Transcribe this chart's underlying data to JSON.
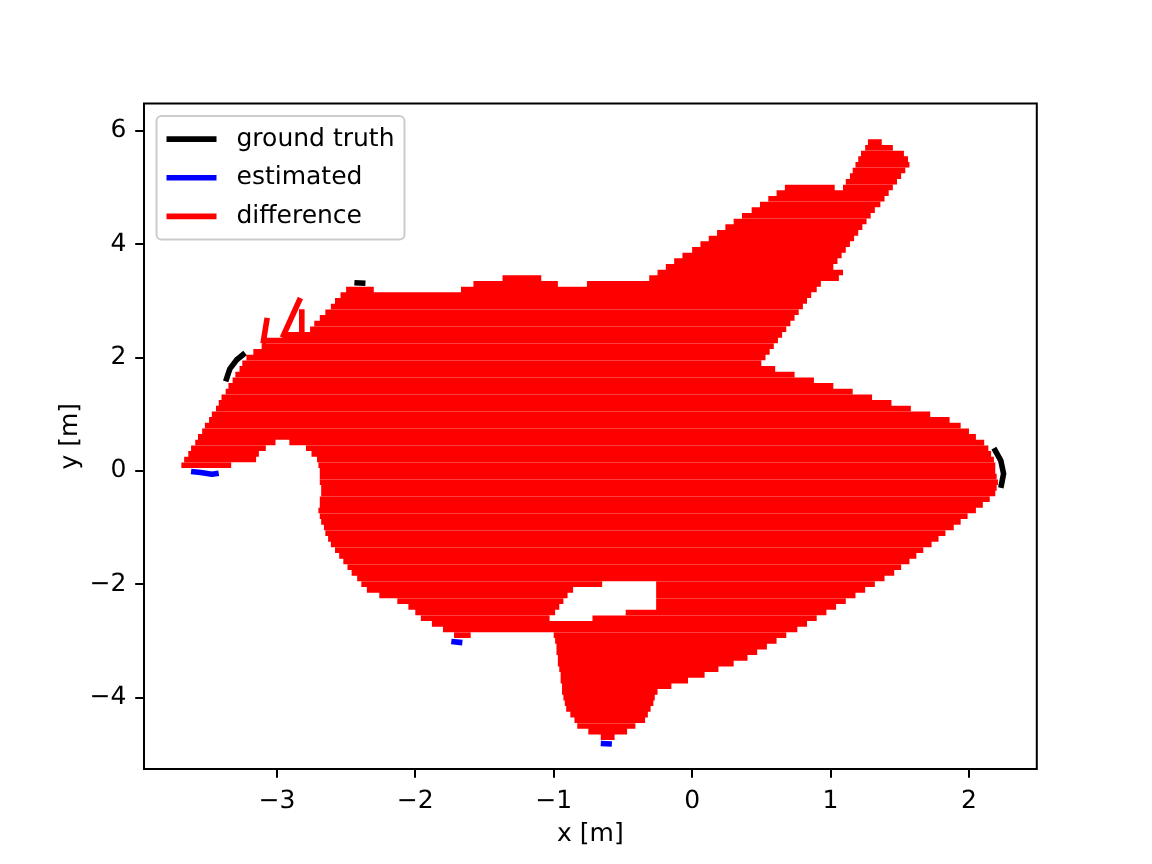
{
  "chart_data": {
    "type": "line",
    "xlabel": "x [m]",
    "ylabel": "y [m]",
    "xlim": [
      -3.96,
      2.49
    ],
    "ylim": [
      -5.26,
      6.48
    ],
    "xticks": [
      -3,
      -2,
      -1,
      0,
      1,
      2
    ],
    "yticks": [
      -4,
      -2,
      0,
      2,
      4,
      6
    ],
    "legend": "top left",
    "line_style": "solid",
    "series": [
      {
        "name": "ground truth",
        "color": "#000000",
        "x": [
          -3.37,
          -3.34,
          -3.29,
          -3.23,
          null,
          -2.44,
          -2.36,
          null,
          2.18,
          2.23,
          2.25,
          2.23
        ],
        "values": [
          1.58,
          1.8,
          1.96,
          2.08,
          null,
          3.32,
          3.31,
          null,
          0.4,
          0.18,
          -0.05,
          -0.3
        ]
      },
      {
        "name": "estimated",
        "color": "#0000ff",
        "x": [
          -3.62,
          -3.55,
          -3.47,
          -3.42,
          null,
          -1.74,
          -1.66,
          null,
          -0.66,
          -0.58
        ],
        "values": [
          -0.01,
          -0.03,
          -0.06,
          -0.04,
          null,
          -3.01,
          -3.03,
          null,
          -4.81,
          -4.82
        ]
      },
      {
        "name": "difference",
        "color": "#ff0000",
        "x": [
          -0.66,
          -0.56,
          null,
          -0.75,
          -0.47,
          null,
          -0.83,
          -0.41,
          null,
          -0.85,
          -0.34,
          null,
          -0.88,
          -0.32,
          null,
          -0.91,
          -0.3,
          null,
          -0.92,
          -0.28,
          null,
          -0.93,
          -0.27,
          null,
          -0.94,
          -0.25,
          null,
          -0.94,
          -0.15,
          null,
          -0.95,
          -0.03,
          null,
          -0.95,
          0.09,
          null,
          -0.96,
          0.19,
          null,
          -0.97,
          0.3,
          null,
          -0.97,
          0.4,
          null,
          -0.98,
          0.47,
          null,
          -0.98,
          0.54,
          null,
          -0.99,
          0.61,
          null,
          -1.72,
          -1.6,
          null,
          -1,
          0.68,
          null,
          -1.8,
          0.76,
          null,
          -1.88,
          0.83,
          null,
          -1.96,
          -1.03,
          null,
          -0.72,
          0.9,
          null,
          -2,
          -0.99,
          null,
          -0.48,
          0.97,
          null,
          -2.05,
          -0.96,
          null,
          -0.26,
          1.04,
          null,
          -2.13,
          -0.93,
          null,
          -0.26,
          1.11,
          null,
          -2.26,
          -0.9,
          null,
          -0.26,
          1.18,
          null,
          -2.35,
          -0.86,
          null,
          -0.26,
          1.25,
          null,
          -2.39,
          -0.65,
          null,
          -0.26,
          1.32,
          null,
          -2.42,
          1.39,
          null,
          -2.46,
          1.46,
          null,
          -2.49,
          1.51,
          null,
          -2.52,
          1.57,
          null,
          -2.55,
          1.62,
          null,
          -2.58,
          1.67,
          null,
          -2.61,
          1.73,
          null,
          -2.63,
          1.78,
          null,
          -2.65,
          1.83,
          null,
          -2.66,
          1.89,
          null,
          -2.68,
          1.94,
          null,
          -2.69,
          1.99,
          null,
          -2.7,
          2.05,
          null,
          -2.69,
          2.1,
          null,
          -2.69,
          2.15,
          null,
          -2.68,
          2.19,
          null,
          -2.68,
          2.2,
          null,
          -2.69,
          2.21,
          null,
          -2.69,
          2.2,
          null,
          -2.69,
          2.19,
          null,
          -3.69,
          -3.33,
          null,
          -2.7,
          2.19,
          null,
          -3.67,
          -3.15,
          null,
          -2.71,
          2.18,
          null,
          -3.64,
          -3.13,
          null,
          -2.75,
          2.16,
          null,
          -3.62,
          -3.08,
          null,
          -2.79,
          2.14,
          null,
          -3.59,
          -3.01,
          null,
          -2.91,
          2.11,
          null,
          -3.57,
          2.05,
          null,
          -3.54,
          2,
          null,
          -3.52,
          1.94,
          null,
          -3.49,
          1.86,
          null,
          -3.47,
          1.72,
          null,
          -3.44,
          1.58,
          null,
          -3.42,
          1.44,
          null,
          -3.4,
          1.3,
          null,
          -3.37,
          1.16,
          null,
          -3.35,
          1.02,
          null,
          -3.32,
          0.88,
          null,
          -3.3,
          0.74,
          null,
          -3.27,
          0.6,
          null,
          -3.25,
          0.5,
          null,
          -3.22,
          0.53,
          null,
          -3.17,
          0.56,
          null,
          -3.11,
          0.59,
          null,
          -3.1,
          0.62,
          null,
          -3.1,
          -3.07,
          null,
          -2.96,
          0.65,
          null,
          -2.96,
          -2.83,
          null,
          -2.82,
          -2.82,
          null,
          -2.76,
          0.68,
          null,
          -2.73,
          0.71,
          null,
          -2.69,
          0.74,
          null,
          -2.65,
          0.77,
          null,
          -2.61,
          0.8,
          null,
          -2.58,
          0.83,
          null,
          -2.54,
          0.86,
          null,
          -2.5,
          -2.3,
          null,
          -1.67,
          0.9,
          null,
          -1.58,
          -0.97,
          null,
          -0.76,
          0.93,
          null,
          -1.37,
          -1.09,
          null,
          -0.31,
          1.06,
          null,
          -0.25,
          1.09,
          null,
          -0.19,
          1.02,
          null,
          -0.13,
          1.05,
          null,
          -0.07,
          1.08,
          null,
          0,
          1.11,
          null,
          0.06,
          1.14,
          null,
          0.12,
          1.17,
          null,
          0.18,
          1.2,
          null,
          0.24,
          1.23,
          null,
          0.3,
          1.26,
          null,
          0.36,
          1.29,
          null,
          0.43,
          1.32,
          null,
          0.49,
          1.36,
          null,
          0.55,
          1.39,
          null,
          0.61,
          1.42,
          null,
          0.67,
          1.03,
          null,
          1.09,
          1.45,
          null,
          1.11,
          1.48,
          null,
          1.14,
          1.51,
          null,
          1.16,
          1.54,
          null,
          1.18,
          1.57,
          null,
          1.2,
          1.56,
          null,
          1.22,
          1.53,
          null,
          1.25,
          1.45,
          null,
          1.27,
          1.37
        ],
        "values": [
          -4.7,
          -4.7,
          null,
          -4.6,
          -4.6,
          null,
          -4.5,
          -4.5,
          null,
          -4.4,
          -4.4,
          null,
          -4.3,
          -4.3,
          null,
          -4.2,
          -4.2,
          null,
          -4.1,
          -4.1,
          null,
          -4,
          -4,
          null,
          -3.9,
          -3.9,
          null,
          -3.8,
          -3.8,
          null,
          -3.7,
          -3.7,
          null,
          -3.6,
          -3.6,
          null,
          -3.5,
          -3.5,
          null,
          -3.4,
          -3.4,
          null,
          -3.3,
          -3.3,
          null,
          -3.2,
          -3.2,
          null,
          -3.1,
          -3.1,
          null,
          -3,
          -3,
          null,
          -2.9,
          -2.9,
          null,
          -2.9,
          -2.9,
          null,
          -2.8,
          -2.8,
          null,
          -2.7,
          -2.7,
          null,
          -2.6,
          -2.6,
          null,
          -2.6,
          -2.6,
          null,
          -2.5,
          -2.5,
          null,
          -2.5,
          -2.5,
          null,
          -2.4,
          -2.4,
          null,
          -2.4,
          -2.4,
          null,
          -2.3,
          -2.3,
          null,
          -2.3,
          -2.3,
          null,
          -2.2,
          -2.2,
          null,
          -2.2,
          -2.2,
          null,
          -2.1,
          -2.1,
          null,
          -2.1,
          -2.1,
          null,
          -2,
          -2,
          null,
          -2,
          -2,
          null,
          -1.9,
          -1.9,
          null,
          -1.8,
          -1.8,
          null,
          -1.7,
          -1.7,
          null,
          -1.6,
          -1.6,
          null,
          -1.5,
          -1.5,
          null,
          -1.4,
          -1.4,
          null,
          -1.3,
          -1.3,
          null,
          -1.2,
          -1.2,
          null,
          -1.1,
          -1.1,
          null,
          -1,
          -1,
          null,
          -0.9,
          -0.9,
          null,
          -0.8,
          -0.8,
          null,
          -0.7,
          -0.7,
          null,
          -0.6,
          -0.6,
          null,
          -0.5,
          -0.5,
          null,
          -0.4,
          -0.4,
          null,
          -0.3,
          -0.3,
          null,
          -0.2,
          -0.2,
          null,
          -0.1,
          -0.1,
          null,
          0,
          0,
          null,
          0.1,
          0.1,
          null,
          0.1,
          0.1,
          null,
          0.2,
          0.2,
          null,
          0.2,
          0.2,
          null,
          0.3,
          0.3,
          null,
          0.3,
          0.3,
          null,
          0.4,
          0.4,
          null,
          0.4,
          0.4,
          null,
          0.5,
          0.5,
          null,
          0.5,
          0.5,
          null,
          0.6,
          0.6,
          null,
          0.7,
          0.7,
          null,
          0.8,
          0.8,
          null,
          0.9,
          0.9,
          null,
          1,
          1,
          null,
          1.1,
          1.1,
          null,
          1.2,
          1.2,
          null,
          1.3,
          1.3,
          null,
          1.4,
          1.4,
          null,
          1.5,
          1.5,
          null,
          1.6,
          1.6,
          null,
          1.7,
          1.7,
          null,
          1.8,
          1.8,
          null,
          1.9,
          1.9,
          null,
          2,
          2,
          null,
          2.1,
          2.1,
          null,
          2.2,
          2.2,
          null,
          2.3,
          2.3,
          null,
          2.25,
          2.7,
          null,
          2.4,
          2.4,
          null,
          2.35,
          3.05,
          null,
          2.45,
          2.85,
          null,
          2.5,
          2.5,
          null,
          2.6,
          2.6,
          null,
          2.7,
          2.7,
          null,
          2.8,
          2.8,
          null,
          2.9,
          2.9,
          null,
          3,
          3,
          null,
          3.1,
          3.1,
          null,
          3.2,
          3.2,
          null,
          3.2,
          3.2,
          null,
          3.3,
          3.3,
          null,
          3.3,
          3.3,
          null,
          3.4,
          3.4,
          null,
          3.4,
          3.4,
          null,
          3.5,
          3.5,
          null,
          3.6,
          3.6,
          null,
          3.7,
          3.7,
          null,
          3.8,
          3.8,
          null,
          3.9,
          3.9,
          null,
          4,
          4,
          null,
          4.1,
          4.1,
          null,
          4.2,
          4.2,
          null,
          4.3,
          4.3,
          null,
          4.4,
          4.4,
          null,
          4.5,
          4.5,
          null,
          4.6,
          4.6,
          null,
          4.7,
          4.7,
          null,
          4.8,
          4.8,
          null,
          4.9,
          4.9,
          null,
          5,
          5,
          null,
          5,
          5,
          null,
          5.1,
          5.1,
          null,
          5.2,
          5.2,
          null,
          5.3,
          5.3,
          null,
          5.4,
          5.4,
          null,
          5.5,
          5.5,
          null,
          5.6,
          5.6,
          null,
          5.7,
          5.7,
          null,
          5.8,
          5.8
        ]
      }
    ]
  }
}
